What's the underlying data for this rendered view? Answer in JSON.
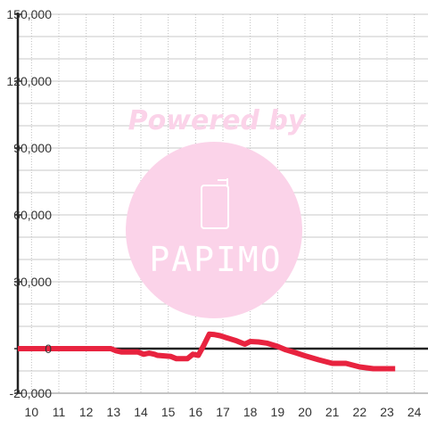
{
  "watermark": {
    "line1": "Powered by",
    "logo": "PAPIMO",
    "color": "#fbd3e9",
    "icon": "phone-icon"
  },
  "chart_data": {
    "type": "line",
    "xlim": [
      9.5,
      24.5
    ],
    "ylim": [
      -20000,
      150000
    ],
    "x_ticks": [
      "10",
      "11",
      "12",
      "13",
      "14",
      "15",
      "16",
      "17",
      "18",
      "19",
      "20",
      "21",
      "22",
      "23",
      "24"
    ],
    "y_ticks": [
      "150,000",
      "120,000",
      "90,000",
      "60,000",
      "30,000",
      "0",
      "-20,000"
    ],
    "grid": true,
    "series": [
      {
        "color": "#e8233f",
        "x": [
          9.5,
          12.9,
          13.1,
          13.3,
          13.9,
          14.1,
          14.3,
          14.5,
          14.6,
          15.1,
          15.3,
          15.7,
          15.9,
          16.1,
          16.3,
          16.5,
          16.7,
          16.9,
          17.1,
          17.5,
          17.8,
          18.0,
          18.3,
          18.6,
          19.0,
          19.3,
          19.7,
          20.0,
          20.5,
          21.0,
          21.5,
          22.0,
          22.5,
          23.0,
          23.3
        ],
        "y": [
          0,
          0,
          -1000,
          -1500,
          -1500,
          -2500,
          -2000,
          -2500,
          -3000,
          -3500,
          -4500,
          -4500,
          -2500,
          -3000,
          1500,
          6500,
          6300,
          5800,
          5000,
          3500,
          2000,
          3200,
          3000,
          2500,
          1000,
          -500,
          -2000,
          -3200,
          -5000,
          -6600,
          -6600,
          -8200,
          -9000,
          -9000,
          -9000
        ]
      }
    ]
  }
}
